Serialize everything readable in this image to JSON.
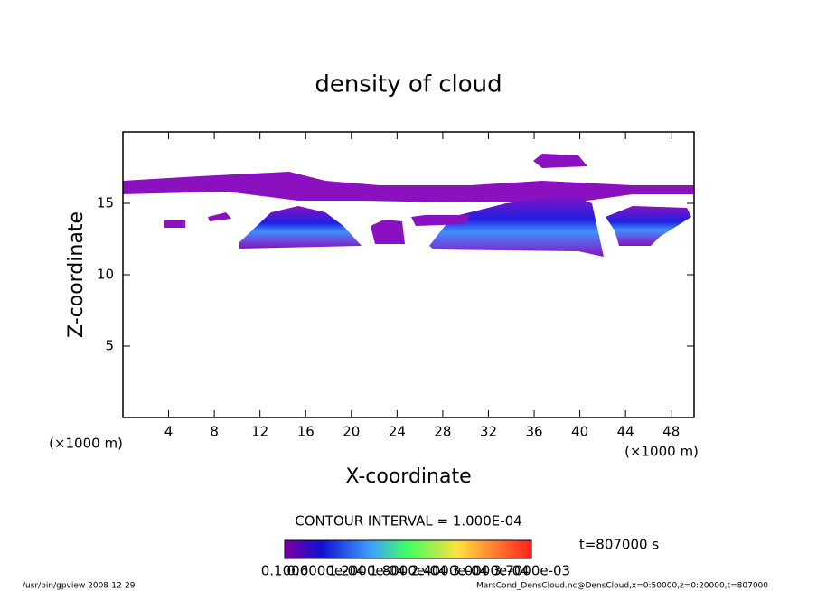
{
  "chart_data": {
    "type": "contour",
    "title": "density of cloud",
    "x_label": "X-coordinate",
    "y_label": "Z-coordinate",
    "x_unit_left": "(×1000 m)",
    "x_unit_right": "(×1000 m)",
    "xlim": [
      0,
      50
    ],
    "ylim": [
      0,
      20
    ],
    "xticks": [
      4,
      8,
      12,
      16,
      20,
      24,
      28,
      32,
      36,
      40,
      44,
      48
    ],
    "yticks": [
      5,
      10,
      15
    ],
    "contour_interval": "CONTOUR INTERVAL = 1.000E-04",
    "time_label": "t=807000 s",
    "colorbar_labels": [
      "0.1000",
      "0.6000e-04",
      "1.2000e-04",
      "1.8000e-04",
      "2.4000e-04",
      "3.0000e-04",
      "3.7000e-03"
    ],
    "footer_left": "/usr/bin/gpview   2008-12-29",
    "footer_right": "MarsCond_DensCloud.nc@DensCloud,x=0:50000,z=0:20000,t=807000"
  }
}
